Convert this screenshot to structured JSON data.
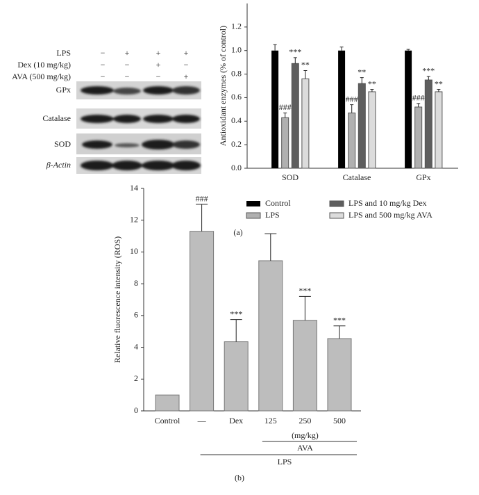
{
  "blot": {
    "treatments": [
      {
        "label": "LPS",
        "signs": [
          "−",
          "+",
          "+",
          "+"
        ]
      },
      {
        "label": "Dex (10 mg/kg)",
        "signs": [
          "−",
          "−",
          "+",
          "−"
        ]
      },
      {
        "label": "AVA (500 mg/kg)",
        "signs": [
          "−",
          "−",
          "−",
          "+"
        ]
      }
    ],
    "bands": [
      "GPx",
      "Catalase",
      "SOD",
      "β-Actin"
    ]
  },
  "chart_data": [
    {
      "type": "bar",
      "panel_label": "(a)",
      "ylabel": "Antioxidant enzymes (% of control)",
      "categories": [
        "SOD",
        "Catalase",
        "GPx"
      ],
      "ylim": [
        0,
        1.4
      ],
      "yticks": [
        {
          "value": 0,
          "label": "0.0"
        },
        0.2,
        0.4,
        0.6,
        0.8,
        {
          "value": 1,
          "label": "1.0"
        },
        1.2
      ],
      "series": [
        {
          "name": "Control",
          "color": "#000000",
          "values": [
            1.0,
            1.0,
            1.0
          ],
          "errors": [
            0.05,
            0.03,
            0.01
          ],
          "annotations": [
            null,
            null,
            null
          ]
        },
        {
          "name": "LPS",
          "color": "#b0b0b0",
          "values": [
            0.43,
            0.47,
            0.52
          ],
          "errors": [
            0.04,
            0.07,
            0.03
          ],
          "annotations": [
            "###",
            "###",
            "###"
          ]
        },
        {
          "name": "LPS and 10 mg/kg Dex",
          "color": "#5e5e5e",
          "values": [
            0.89,
            0.72,
            0.75
          ],
          "errors": [
            0.05,
            0.05,
            0.03
          ],
          "annotations": [
            "***",
            "**",
            "***"
          ]
        },
        {
          "name": "LPS and 500 mg/kg AVA",
          "color": "#dcdcdc",
          "values": [
            0.76,
            0.65,
            0.65
          ],
          "errors": [
            0.07,
            0.02,
            0.02
          ],
          "annotations": [
            "**",
            "**",
            "**"
          ]
        }
      ]
    },
    {
      "type": "bar",
      "panel_label": "(b)",
      "ylabel": "Relative fluorescence intensity (ROS)",
      "categories": [
        "Control",
        "—",
        "Dex",
        "125",
        "250",
        "500"
      ],
      "values": [
        1.0,
        11.3,
        4.35,
        9.45,
        5.7,
        4.55
      ],
      "errors": [
        null,
        1.7,
        1.4,
        1.7,
        1.5,
        0.8
      ],
      "annotations": [
        null,
        "###",
        "***",
        null,
        "***",
        "***"
      ],
      "color": "#bdbdbd",
      "ylim": [
        0,
        14
      ],
      "yticks": [
        0,
        2,
        4,
        6,
        8,
        10,
        12,
        14
      ],
      "unit_label": "(mg/kg)",
      "group_labels": [
        "AVA",
        "LPS"
      ]
    }
  ]
}
